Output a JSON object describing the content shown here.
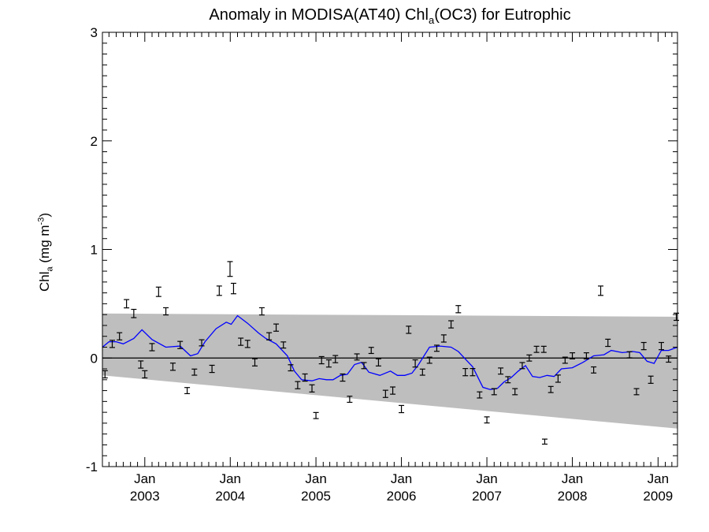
{
  "chart_data": {
    "type": "scatter",
    "title_parts": [
      "Anomaly in MODISA(AT40) Chl",
      "a",
      "(OC3) for Eutrophic"
    ],
    "ylabel_parts": [
      "Chl",
      "a",
      " (mg m",
      "-3",
      ")"
    ],
    "xlim": [
      "2002-07-04",
      "2009-03-25"
    ],
    "ylim": [
      -1,
      3
    ],
    "yticks": [
      -1,
      0,
      1,
      2,
      3
    ],
    "xticks": [
      {
        "date": "2003-01-01",
        "month": "Jan",
        "year": "2003"
      },
      {
        "date": "2004-01-01",
        "month": "Jan",
        "year": "2004"
      },
      {
        "date": "2005-01-01",
        "month": "Jan",
        "year": "2005"
      },
      {
        "date": "2006-01-01",
        "month": "Jan",
        "year": "2006"
      },
      {
        "date": "2007-01-01",
        "month": "Jan",
        "year": "2007"
      },
      {
        "date": "2008-01-01",
        "month": "Jan",
        "year": "2008"
      },
      {
        "date": "2009-01-01",
        "month": "Jan",
        "year": "2009"
      }
    ],
    "band": {
      "color": "#bebebe",
      "upper": [
        [
          "2002-07-04",
          0.41
        ],
        [
          "2009-03-25",
          0.38
        ]
      ],
      "lower": [
        [
          "2002-07-04",
          -0.16
        ],
        [
          "2009-03-25",
          -0.65
        ]
      ]
    },
    "zero_line": 0,
    "points_color": "#000000",
    "points": [
      {
        "x": "2002-07-15",
        "y": -0.15,
        "err": 0.015
      },
      {
        "x": "2002-08-15",
        "y": 0.13,
        "err": 0.015
      },
      {
        "x": "2002-09-15",
        "y": 0.2,
        "err": 0.015
      },
      {
        "x": "2002-10-15",
        "y": 0.5,
        "err": 0.02
      },
      {
        "x": "2002-11-15",
        "y": 0.41,
        "err": 0.02
      },
      {
        "x": "2002-12-15",
        "y": -0.06,
        "err": 0.015
      },
      {
        "x": "2003-01-01",
        "y": -0.15,
        "err": 0.015
      },
      {
        "x": "2003-02-01",
        "y": 0.1,
        "err": 0.015
      },
      {
        "x": "2003-03-01",
        "y": 0.61,
        "err": 0.025
      },
      {
        "x": "2003-04-01",
        "y": 0.43,
        "err": 0.015
      },
      {
        "x": "2003-05-01",
        "y": -0.08,
        "err": 0.015
      },
      {
        "x": "2003-06-01",
        "y": 0.12,
        "err": 0.015
      },
      {
        "x": "2003-07-01",
        "y": -0.3,
        "err": 0.01
      },
      {
        "x": "2003-08-01",
        "y": -0.13,
        "err": 0.01
      },
      {
        "x": "2003-09-01",
        "y": 0.14,
        "err": 0.01
      },
      {
        "x": "2003-10-15",
        "y": -0.1,
        "err": 0.015
      },
      {
        "x": "2003-11-15",
        "y": 0.62,
        "err": 0.025
      },
      {
        "x": "2003-12-31",
        "y": 0.82,
        "err": 0.05
      },
      {
        "x": "2004-01-15",
        "y": 0.64,
        "err": 0.03
      },
      {
        "x": "2004-02-15",
        "y": 0.15,
        "err": 0.015
      },
      {
        "x": "2004-03-15",
        "y": 0.13,
        "err": 0.015
      },
      {
        "x": "2004-04-15",
        "y": -0.04,
        "err": 0.015
      },
      {
        "x": "2004-05-15",
        "y": 0.43,
        "err": 0.015
      },
      {
        "x": "2004-06-15",
        "y": 0.2,
        "err": 0.015
      },
      {
        "x": "2004-07-15",
        "y": 0.28,
        "err": 0.015
      },
      {
        "x": "2004-08-15",
        "y": 0.12,
        "err": 0.01
      },
      {
        "x": "2004-09-15",
        "y": -0.09,
        "err": 0.01
      },
      {
        "x": "2004-10-15",
        "y": -0.25,
        "err": 0.015
      },
      {
        "x": "2004-11-15",
        "y": -0.18,
        "err": 0.015
      },
      {
        "x": "2004-12-15",
        "y": -0.28,
        "err": 0.015
      },
      {
        "x": "2005-01-01",
        "y": -0.53,
        "err": 0.01
      },
      {
        "x": "2005-01-25",
        "y": -0.02,
        "err": 0.015
      },
      {
        "x": "2005-02-25",
        "y": -0.05,
        "err": 0.015
      },
      {
        "x": "2005-03-25",
        "y": -0.01,
        "err": 0.015
      },
      {
        "x": "2005-04-25",
        "y": -0.18,
        "err": 0.015
      },
      {
        "x": "2005-05-25",
        "y": -0.38,
        "err": 0.01
      },
      {
        "x": "2005-06-25",
        "y": 0.01,
        "err": 0.01
      },
      {
        "x": "2005-07-25",
        "y": -0.07,
        "err": 0.01
      },
      {
        "x": "2005-08-25",
        "y": 0.07,
        "err": 0.01
      },
      {
        "x": "2005-09-25",
        "y": -0.04,
        "err": 0.015
      },
      {
        "x": "2005-10-25",
        "y": -0.33,
        "err": 0.015
      },
      {
        "x": "2005-11-25",
        "y": -0.3,
        "err": 0.015
      },
      {
        "x": "2006-01-01",
        "y": -0.47,
        "err": 0.015
      },
      {
        "x": "2006-02-01",
        "y": 0.26,
        "err": 0.015
      },
      {
        "x": "2006-03-01",
        "y": -0.05,
        "err": 0.015
      },
      {
        "x": "2006-04-01",
        "y": -0.13,
        "err": 0.01
      },
      {
        "x": "2006-05-01",
        "y": -0.02,
        "err": 0.01
      },
      {
        "x": "2006-06-01",
        "y": 0.09,
        "err": 0.01
      },
      {
        "x": "2006-07-01",
        "y": 0.18,
        "err": 0.015
      },
      {
        "x": "2006-08-01",
        "y": 0.31,
        "err": 0.015
      },
      {
        "x": "2006-09-01",
        "y": 0.45,
        "err": 0.015
      },
      {
        "x": "2006-10-01",
        "y": -0.13,
        "err": 0.015
      },
      {
        "x": "2006-11-01",
        "y": -0.13,
        "err": 0.015
      },
      {
        "x": "2006-12-01",
        "y": -0.34,
        "err": 0.01
      },
      {
        "x": "2007-01-01",
        "y": -0.57,
        "err": 0.01
      },
      {
        "x": "2007-02-01",
        "y": -0.31,
        "err": 0.01
      },
      {
        "x": "2007-03-01",
        "y": -0.12,
        "err": 0.01
      },
      {
        "x": "2007-04-01",
        "y": -0.2,
        "err": 0.01
      },
      {
        "x": "2007-05-01",
        "y": -0.31,
        "err": 0.01
      },
      {
        "x": "2007-06-01",
        "y": -0.07,
        "err": 0.01
      },
      {
        "x": "2007-07-01",
        "y": 0.0,
        "err": 0.01
      },
      {
        "x": "2007-08-01",
        "y": 0.08,
        "err": 0.01
      },
      {
        "x": "2007-09-01",
        "y": 0.08,
        "err": 0.01
      },
      {
        "x": "2007-09-05",
        "y": -0.77,
        "err": 0.005
      },
      {
        "x": "2007-10-01",
        "y": -0.29,
        "err": 0.01
      },
      {
        "x": "2007-11-01",
        "y": -0.19,
        "err": 0.015
      },
      {
        "x": "2007-12-01",
        "y": -0.02,
        "err": 0.01
      },
      {
        "x": "2008-01-01",
        "y": 0.02,
        "err": 0.01
      },
      {
        "x": "2008-03-01",
        "y": 0.02,
        "err": 0.01
      },
      {
        "x": "2008-04-01",
        "y": -0.11,
        "err": 0.01
      },
      {
        "x": "2008-05-01",
        "y": 0.62,
        "err": 0.025
      },
      {
        "x": "2008-06-01",
        "y": 0.14,
        "err": 0.015
      },
      {
        "x": "2008-09-01",
        "y": 0.03,
        "err": 0.01
      },
      {
        "x": "2008-10-01",
        "y": -0.31,
        "err": 0.01
      },
      {
        "x": "2008-11-01",
        "y": 0.11,
        "err": 0.015
      },
      {
        "x": "2008-12-01",
        "y": -0.2,
        "err": 0.015
      },
      {
        "x": "2009-01-15",
        "y": 0.11,
        "err": 0.015
      },
      {
        "x": "2009-02-15",
        "y": -0.01,
        "err": 0.01
      },
      {
        "x": "2009-03-20",
        "y": 0.38,
        "err": 0.015
      }
    ],
    "smooth_color": "#0000ff",
    "smooth": [
      [
        "2002-07-04",
        0.1
      ],
      [
        "2002-08-01",
        0.15
      ],
      [
        "2002-09-01",
        0.15
      ],
      [
        "2002-10-01",
        0.13
      ],
      [
        "2002-11-15",
        0.18
      ],
      [
        "2002-12-20",
        0.26
      ],
      [
        "2003-02-01",
        0.17
      ],
      [
        "2003-04-01",
        0.1
      ],
      [
        "2003-06-01",
        0.11
      ],
      [
        "2003-07-15",
        0.02
      ],
      [
        "2003-08-15",
        0.04
      ],
      [
        "2003-09-15",
        0.15
      ],
      [
        "2003-11-01",
        0.27
      ],
      [
        "2003-12-15",
        0.33
      ],
      [
        "2004-01-05",
        0.31
      ],
      [
        "2004-02-01",
        0.39
      ],
      [
        "2004-03-15",
        0.32
      ],
      [
        "2004-05-01",
        0.23
      ],
      [
        "2004-06-01",
        0.18
      ],
      [
        "2004-07-15",
        0.13
      ],
      [
        "2004-09-01",
        0.02
      ],
      [
        "2004-10-01",
        -0.12
      ],
      [
        "2004-11-01",
        -0.2
      ],
      [
        "2004-12-15",
        -0.21
      ],
      [
        "2005-01-15",
        -0.19
      ],
      [
        "2005-02-15",
        -0.2
      ],
      [
        "2005-03-15",
        -0.2
      ],
      [
        "2005-04-15",
        -0.16
      ],
      [
        "2005-05-15",
        -0.15
      ],
      [
        "2005-06-15",
        -0.06
      ],
      [
        "2005-07-15",
        -0.04
      ],
      [
        "2005-08-15",
        -0.13
      ],
      [
        "2005-10-01",
        -0.16
      ],
      [
        "2005-11-15",
        -0.12
      ],
      [
        "2005-12-15",
        -0.16
      ],
      [
        "2006-01-15",
        -0.16
      ],
      [
        "2006-02-15",
        -0.14
      ],
      [
        "2006-03-15",
        -0.06
      ],
      [
        "2006-05-01",
        0.1
      ],
      [
        "2006-06-15",
        0.11
      ],
      [
        "2006-08-01",
        0.1
      ],
      [
        "2006-09-01",
        0.06
      ],
      [
        "2006-10-01",
        -0.01
      ],
      [
        "2006-11-01",
        -0.08
      ],
      [
        "2006-12-15",
        -0.27
      ],
      [
        "2007-01-15",
        -0.29
      ],
      [
        "2007-02-15",
        -0.28
      ],
      [
        "2007-03-15",
        -0.22
      ],
      [
        "2007-04-15",
        -0.18
      ],
      [
        "2007-05-15",
        -0.12
      ],
      [
        "2007-06-15",
        -0.07
      ],
      [
        "2007-07-15",
        -0.17
      ],
      [
        "2007-08-15",
        -0.18
      ],
      [
        "2007-09-15",
        -0.16
      ],
      [
        "2007-10-15",
        -0.17
      ],
      [
        "2007-11-15",
        -0.1
      ],
      [
        "2008-01-01",
        -0.09
      ],
      [
        "2008-02-15",
        -0.04
      ],
      [
        "2008-04-01",
        0.02
      ],
      [
        "2008-05-15",
        0.03
      ],
      [
        "2008-06-15",
        0.07
      ],
      [
        "2008-08-01",
        0.05
      ],
      [
        "2008-09-15",
        0.06
      ],
      [
        "2008-10-15",
        0.05
      ],
      [
        "2008-11-15",
        -0.03
      ],
      [
        "2008-12-15",
        -0.05
      ],
      [
        "2009-01-15",
        0.07
      ],
      [
        "2009-02-15",
        0.07
      ],
      [
        "2009-03-25",
        0.1
      ]
    ]
  }
}
